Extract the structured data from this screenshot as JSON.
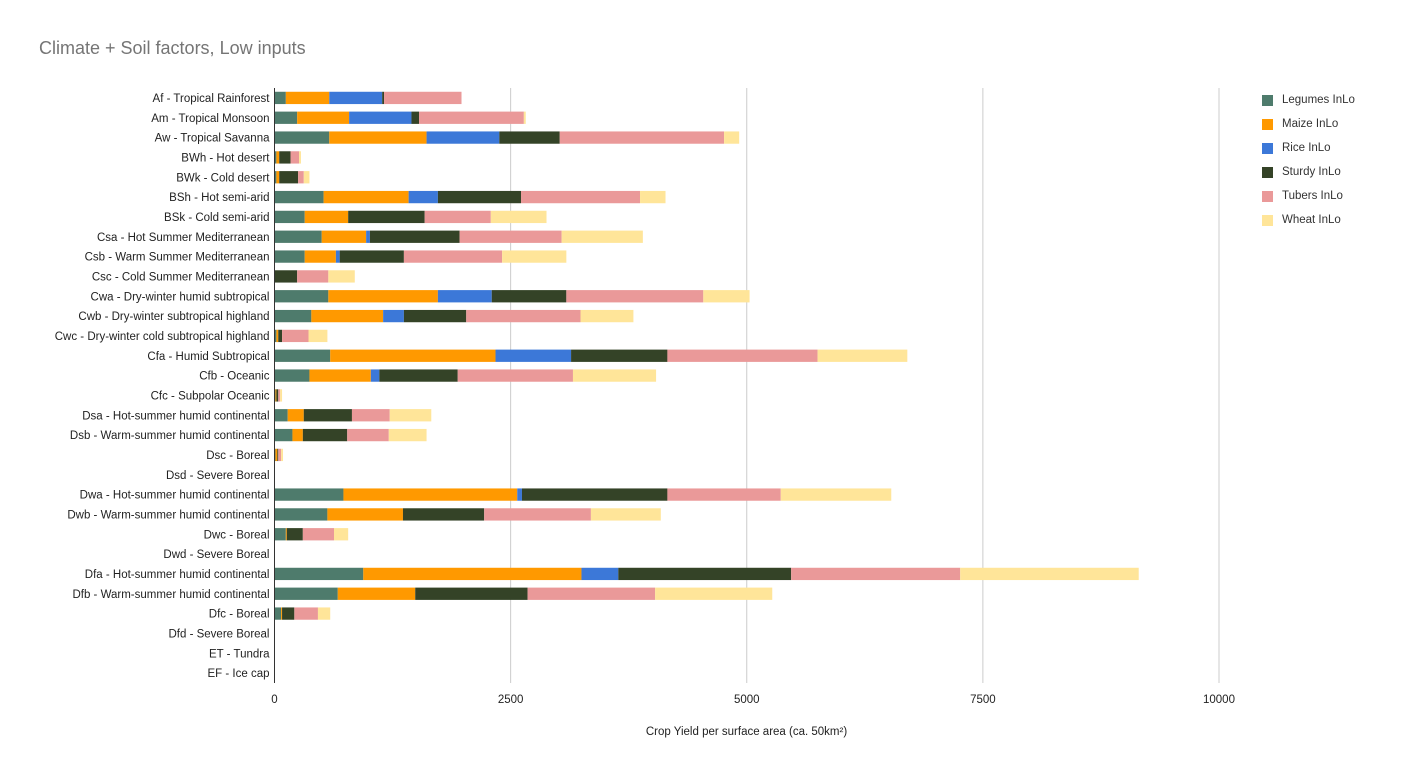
{
  "chart_data": {
    "type": "bar",
    "orientation": "horizontal",
    "stacked": true,
    "title": "Climate + Soil factors, Low inputs",
    "xlabel": "Crop Yield  per surface area (ca. 50km²)",
    "ylabel": "",
    "xlim": [
      0,
      10000
    ],
    "x_ticks": [
      0,
      2500,
      5000,
      7500,
      10000
    ],
    "x_tick_labels": [
      "0",
      "2500",
      "5000",
      "7500",
      "10000"
    ],
    "grid": true,
    "legend_position": "right",
    "categories": [
      "Af - Tropical Rainforest",
      "Am - Tropical Monsoon",
      "Aw - Tropical Savanna",
      "BWh - Hot desert",
      "BWk - Cold desert",
      "BSh - Hot semi-arid",
      "BSk - Cold semi-arid",
      "Csa - Hot Summer Mediterranean",
      "Csb - Warm Summer Mediterranean",
      "Csc - Cold Summer Mediterranean",
      "Cwa - Dry-winter humid subtropical",
      "Cwb - Dry-winter subtropical highland",
      "Cwc - Dry-winter cold subtropical highland",
      "Cfa - Humid Subtropical",
      "Cfb - Oceanic",
      "Cfc - Subpolar Oceanic",
      "Dsa - Hot-summer humid continental",
      "Dsb - Warm-summer humid continental",
      "Dsc - Boreal",
      "Dsd - Severe Boreal",
      "Dwa - Hot-summer humid continental",
      "Dwb - Warm-summer humid continental",
      "Dwc - Boreal",
      "Dwd - Severe Boreal",
      "Dfa - Hot-summer humid continental",
      "Dfb - Warm-summer humid continental",
      "Dfc - Boreal",
      "Dfd - Severe Boreal",
      "ET - Tundra",
      "EF - Ice cap"
    ],
    "series": [
      {
        "name": "Legumes InLo",
        "color": "#4e7b6c",
        "values": [
          120,
          240,
          580,
          20,
          20,
          520,
          320,
          500,
          320,
          0,
          570,
          390,
          20,
          590,
          370,
          10,
          140,
          190,
          10,
          0,
          730,
          560,
          120,
          0,
          940,
          670,
          70,
          0,
          0,
          0
        ]
      },
      {
        "name": "Maize InLo",
        "color": "#ff9900",
        "values": [
          460,
          550,
          1030,
          30,
          30,
          900,
          460,
          470,
          330,
          0,
          1160,
          760,
          20,
          1750,
          650,
          10,
          170,
          110,
          20,
          0,
          1840,
          800,
          10,
          0,
          2310,
          820,
          10,
          0,
          0,
          0
        ]
      },
      {
        "name": "Rice InLo",
        "color": "#3c78d8",
        "values": [
          560,
          660,
          770,
          0,
          0,
          310,
          0,
          40,
          40,
          0,
          570,
          220,
          0,
          800,
          90,
          0,
          0,
          0,
          0,
          0,
          50,
          0,
          0,
          0,
          390,
          0,
          0,
          0,
          0,
          0
        ]
      },
      {
        "name": "Sturdy InLo",
        "color": "#344327",
        "values": [
          20,
          80,
          640,
          120,
          200,
          880,
          810,
          950,
          680,
          240,
          790,
          660,
          40,
          1020,
          830,
          20,
          510,
          470,
          10,
          0,
          1540,
          860,
          170,
          0,
          1830,
          1190,
          130,
          0,
          0,
          0
        ]
      },
      {
        "name": "Tubers InLo",
        "color": "#ea9999",
        "values": [
          820,
          1110,
          1740,
          90,
          60,
          1260,
          700,
          1080,
          1040,
          330,
          1450,
          1210,
          280,
          1590,
          1220,
          20,
          400,
          440,
          30,
          0,
          1200,
          1130,
          330,
          0,
          1790,
          1350,
          250,
          0,
          0,
          0
        ]
      },
      {
        "name": "Wheat InLo",
        "color": "#ffe599",
        "values": [
          0,
          20,
          160,
          20,
          60,
          270,
          590,
          860,
          680,
          280,
          490,
          560,
          200,
          950,
          880,
          20,
          440,
          400,
          20,
          0,
          1170,
          740,
          150,
          0,
          1890,
          1240,
          130,
          0,
          0,
          0
        ]
      }
    ]
  }
}
